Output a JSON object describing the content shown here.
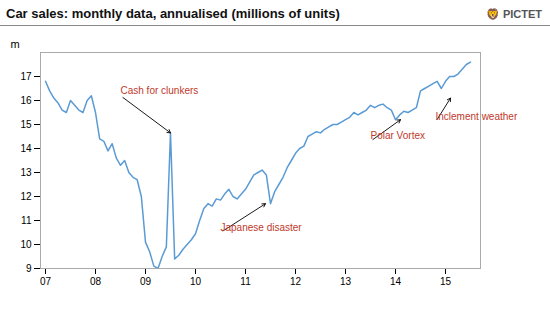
{
  "chart_data": {
    "type": "line",
    "title": "Car sales: monthly data, annualised (millions of units)",
    "subtitle": "🦁 PICTET",
    "ylabel": "m",
    "color": "#5b9bd5",
    "grid": false,
    "xlim": [
      6.9,
      15.7
    ],
    "xticks": [
      {
        "value": 7,
        "label": "07"
      },
      {
        "value": 8,
        "label": "08"
      },
      {
        "value": 9,
        "label": "09"
      },
      10,
      11,
      12,
      13,
      14,
      15
    ],
    "ylim": [
      9,
      18
    ],
    "yticks": [
      9,
      10,
      11,
      12,
      13,
      14,
      15,
      16,
      17
    ],
    "annotations": [
      {
        "label": "Cash for clunkers",
        "x": 9.5,
        "y": 14.65,
        "tx": 8.5,
        "ty": 16.2,
        "color": "#c0392b"
      },
      {
        "label": "Japanese disaster",
        "x": 11.4,
        "y": 11.7,
        "tx": 10.5,
        "ty": 10.5,
        "color": "#c0392b"
      },
      {
        "label": "Polar Vortex",
        "x": 14.1,
        "y": 15.2,
        "tx": 13.5,
        "ty": 14.3,
        "color": "#c0392b"
      },
      {
        "label": "Inclement weather",
        "x": 15.1,
        "y": 16.1,
        "tx": 14.8,
        "ty": 15.1,
        "color": "#c0392b"
      }
    ],
    "x": [
      7.0,
      7.083,
      7.167,
      7.25,
      7.333,
      7.417,
      7.5,
      7.583,
      7.667,
      7.75,
      7.833,
      7.917,
      8.0,
      8.083,
      8.167,
      8.25,
      8.333,
      8.417,
      8.5,
      8.583,
      8.667,
      8.75,
      8.833,
      8.917,
      9.0,
      9.083,
      9.167,
      9.25,
      9.333,
      9.417,
      9.5,
      9.583,
      9.667,
      9.75,
      9.833,
      9.917,
      10.0,
      10.083,
      10.167,
      10.25,
      10.333,
      10.417,
      10.5,
      10.583,
      10.667,
      10.75,
      10.833,
      10.917,
      11.0,
      11.083,
      11.167,
      11.25,
      11.333,
      11.417,
      11.5,
      11.583,
      11.667,
      11.75,
      11.833,
      11.917,
      12.0,
      12.083,
      12.167,
      12.25,
      12.333,
      12.417,
      12.5,
      12.583,
      12.667,
      12.75,
      12.833,
      12.917,
      13.0,
      13.083,
      13.167,
      13.25,
      13.333,
      13.417,
      13.5,
      13.583,
      13.667,
      13.75,
      13.833,
      13.917,
      14.0,
      14.083,
      14.167,
      14.25,
      14.333,
      14.417,
      14.5,
      14.583,
      14.667,
      14.75,
      14.833,
      14.917,
      15.0,
      15.083,
      15.167,
      15.25,
      15.333,
      15.417,
      15.5
    ],
    "values": [
      16.8,
      16.4,
      16.1,
      15.9,
      15.6,
      15.5,
      16.0,
      15.8,
      15.6,
      15.5,
      16.0,
      16.2,
      15.5,
      14.4,
      14.3,
      13.9,
      14.2,
      13.6,
      13.3,
      13.5,
      13.0,
      12.8,
      12.7,
      12.0,
      10.1,
      9.7,
      9.1,
      9.0,
      9.5,
      9.9,
      14.65,
      9.4,
      9.55,
      9.8,
      10.0,
      10.2,
      10.45,
      11.0,
      11.5,
      11.7,
      11.6,
      11.9,
      11.85,
      12.1,
      12.3,
      12.0,
      11.9,
      12.1,
      12.3,
      12.6,
      12.9,
      13.0,
      13.1,
      12.9,
      11.7,
      12.2,
      12.5,
      12.8,
      13.2,
      13.5,
      13.8,
      14.0,
      14.1,
      14.5,
      14.6,
      14.7,
      14.65,
      14.8,
      14.9,
      15.0,
      15.0,
      15.1,
      15.2,
      15.3,
      15.5,
      15.4,
      15.5,
      15.6,
      15.8,
      15.7,
      15.8,
      15.85,
      15.7,
      15.6,
      15.2,
      15.4,
      15.55,
      15.5,
      15.6,
      15.7,
      16.4,
      16.5,
      16.6,
      16.7,
      16.8,
      16.5,
      16.8,
      17.0,
      17.0,
      17.1,
      17.3,
      17.5,
      17.6
    ]
  }
}
